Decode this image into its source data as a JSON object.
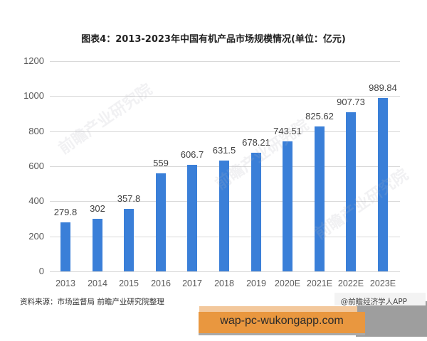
{
  "title": "图表4：2013-2023年中国有机产品市场规模情况(单位：亿元)",
  "y_axis": {
    "ticks": [
      "0",
      "200",
      "400",
      "600",
      "800",
      "1000",
      "1200"
    ]
  },
  "bars": [
    {
      "category": "2013",
      "value": 279.8,
      "label": "279.8"
    },
    {
      "category": "2014",
      "value": 302,
      "label": "302"
    },
    {
      "category": "2015",
      "value": 357.8,
      "label": "357.8"
    },
    {
      "category": "2016",
      "value": 559,
      "label": "559"
    },
    {
      "category": "2017",
      "value": 606.7,
      "label": "606.7"
    },
    {
      "category": "2018",
      "value": 631.5,
      "label": "631.5"
    },
    {
      "category": "2019",
      "value": 678.21,
      "label": "678.21"
    },
    {
      "category": "2020E",
      "value": 743.51,
      "label": "743.51"
    },
    {
      "category": "2021E",
      "value": 825.62,
      "label": "825.62"
    },
    {
      "category": "2022E",
      "value": 907.73,
      "label": "907.73"
    },
    {
      "category": "2023E",
      "value": 989.84,
      "label": "989.84"
    }
  ],
  "footer": {
    "source": "资料来源：市场监督局 前瞻产业研究院整理",
    "credit": "@前瞻经济学人APP"
  },
  "watermark_text": "前瞻产业研究院",
  "banner": {
    "text": "wap-pc-wukongapp.com"
  },
  "colors": {
    "bar": "#3a7fd8",
    "banner": "#e9973f"
  },
  "chart_data": {
    "type": "bar",
    "title": "图表4：2013-2023年中国有机产品市场规模情况(单位：亿元)",
    "categories": [
      "2013",
      "2014",
      "2015",
      "2016",
      "2017",
      "2018",
      "2019",
      "2020E",
      "2021E",
      "2022E",
      "2023E"
    ],
    "values": [
      279.8,
      302,
      357.8,
      559,
      606.7,
      631.5,
      678.21,
      743.51,
      825.62,
      907.73,
      989.84
    ],
    "xlabel": "",
    "ylabel": "亿元",
    "ylim": [
      0,
      1200
    ],
    "yticks": [
      0,
      200,
      400,
      600,
      800,
      1000,
      1200
    ],
    "grid": true,
    "legend": null,
    "data_labels": true
  }
}
